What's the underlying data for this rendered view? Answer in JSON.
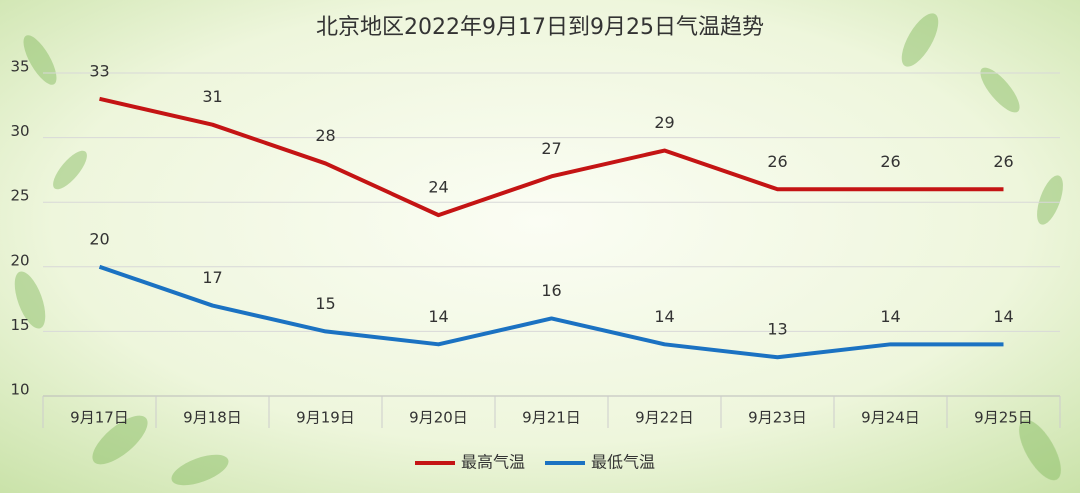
{
  "chart_data": {
    "type": "line",
    "title": "北京地区2022年9月17日到9月25日气温趋势",
    "categories": [
      "9月17日",
      "9月18日",
      "9月19日",
      "9月20日",
      "9月21日",
      "9月22日",
      "9月23日",
      "9月24日",
      "9月25日"
    ],
    "series": [
      {
        "name": "最高气温",
        "color": "#c41414",
        "values": [
          33,
          31,
          28,
          24,
          27,
          29,
          26,
          26,
          26
        ]
      },
      {
        "name": "最低气温",
        "color": "#1b72c2",
        "values": [
          20,
          17,
          15,
          14,
          16,
          14,
          13,
          14,
          14
        ]
      }
    ],
    "ylim": [
      10,
      35
    ],
    "yticks": [
      10,
      15,
      20,
      25,
      30,
      35
    ],
    "grid": true,
    "legend": "bottom"
  }
}
